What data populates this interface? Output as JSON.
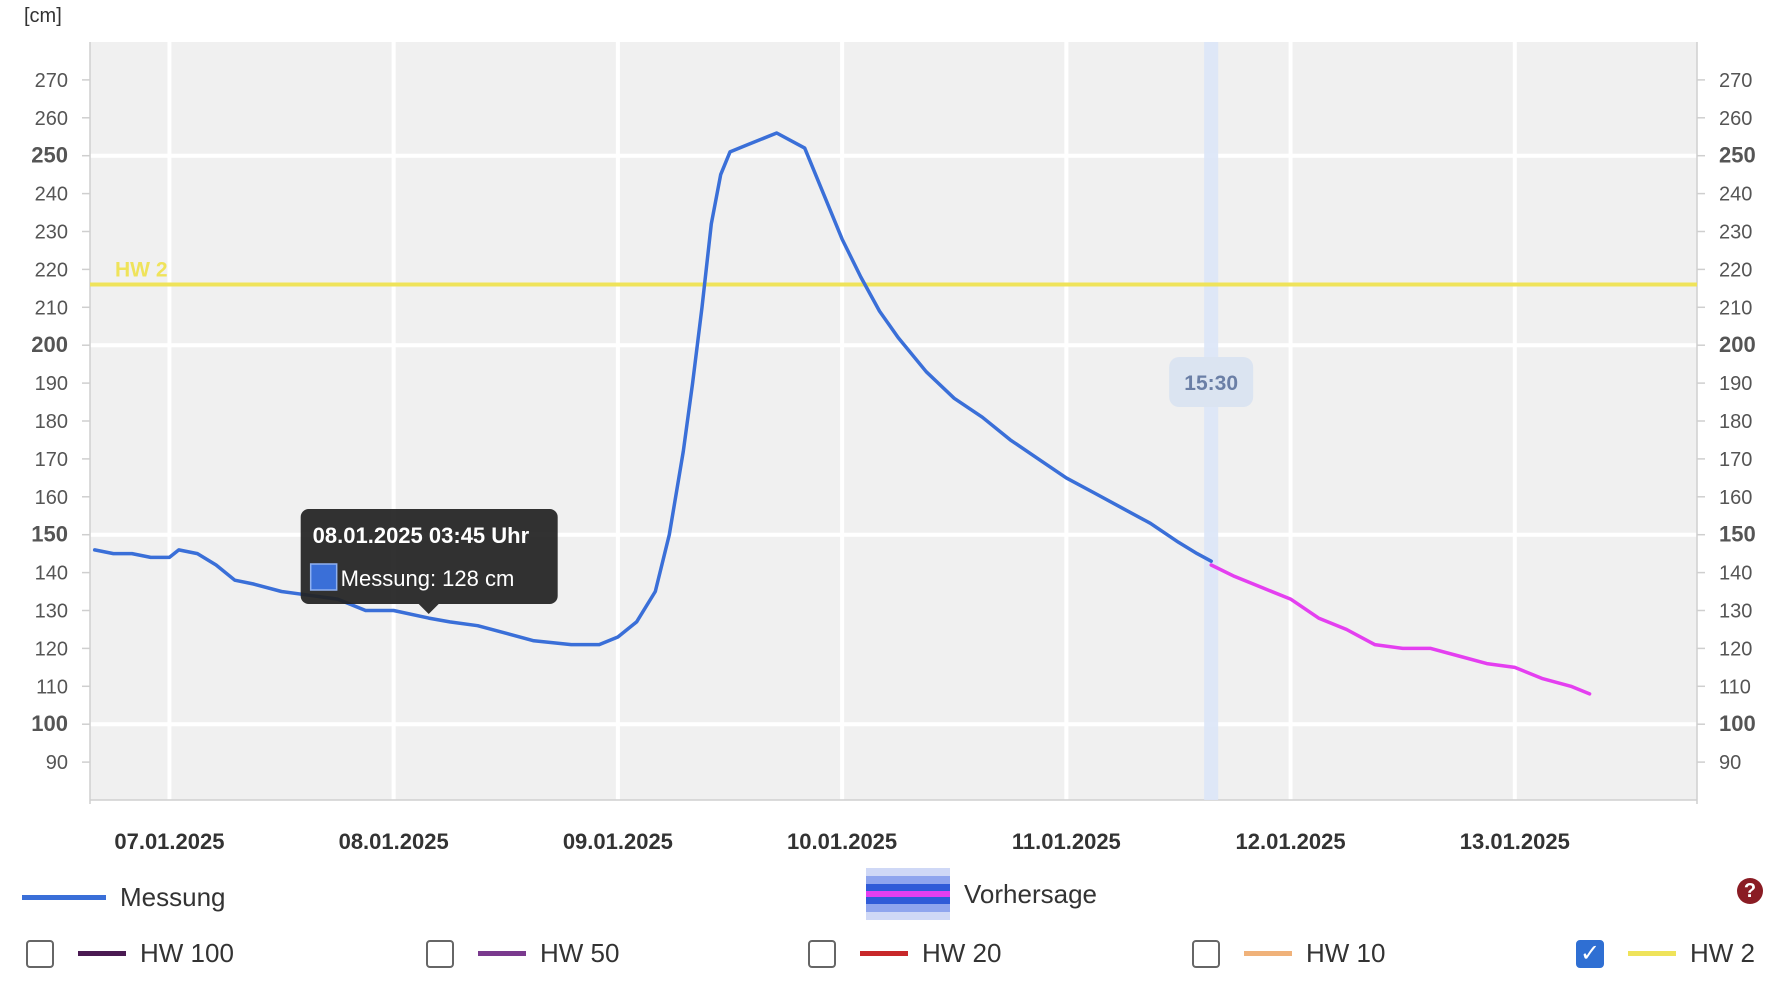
{
  "chart_data": {
    "type": "line",
    "unit_label": "[cm]",
    "ylim": [
      80,
      280
    ],
    "yticks": [
      90,
      100,
      110,
      120,
      130,
      140,
      150,
      160,
      170,
      180,
      190,
      200,
      210,
      220,
      230,
      240,
      250,
      260,
      270
    ],
    "ymajor": [
      100,
      150,
      200,
      250
    ],
    "xlim_days": [
      "06.01.2025 15:30",
      "13.01.2025 19:30"
    ],
    "xticks": [
      "07.01.2025",
      "08.01.2025",
      "09.01.2025",
      "10.01.2025",
      "11.01.2025",
      "12.01.2025",
      "13.01.2025"
    ],
    "series": [
      {
        "name": "Messung",
        "color": "#3a6fd8",
        "points": [
          [
            "06.01.2025 16:00",
            146
          ],
          [
            "06.01.2025 18:00",
            145
          ],
          [
            "06.01.2025 20:00",
            145
          ],
          [
            "06.01.2025 22:00",
            144
          ],
          [
            "07.01.2025 00:00",
            144
          ],
          [
            "07.01.2025 01:00",
            146
          ],
          [
            "07.01.2025 03:00",
            145
          ],
          [
            "07.01.2025 05:00",
            142
          ],
          [
            "07.01.2025 07:00",
            138
          ],
          [
            "07.01.2025 09:00",
            137
          ],
          [
            "07.01.2025 12:00",
            135
          ],
          [
            "07.01.2025 15:00",
            134
          ],
          [
            "07.01.2025 18:00",
            133
          ],
          [
            "07.01.2025 21:00",
            130
          ],
          [
            "08.01.2025 00:00",
            130
          ],
          [
            "08.01.2025 03:45",
            128
          ],
          [
            "08.01.2025 06:00",
            127
          ],
          [
            "08.01.2025 09:00",
            126
          ],
          [
            "08.01.2025 12:00",
            124
          ],
          [
            "08.01.2025 15:00",
            122
          ],
          [
            "08.01.2025 19:00",
            121
          ],
          [
            "08.01.2025 22:00",
            121
          ],
          [
            "09.01.2025 00:00",
            123
          ],
          [
            "09.01.2025 02:00",
            127
          ],
          [
            "09.01.2025 04:00",
            135
          ],
          [
            "09.01.2025 05:30",
            150
          ],
          [
            "09.01.2025 07:00",
            172
          ],
          [
            "09.01.2025 08:00",
            190
          ],
          [
            "09.01.2025 09:00",
            210
          ],
          [
            "09.01.2025 10:00",
            232
          ],
          [
            "09.01.2025 11:00",
            245
          ],
          [
            "09.01.2025 12:00",
            251
          ],
          [
            "09.01.2025 14:00",
            253
          ],
          [
            "09.01.2025 17:00",
            256
          ],
          [
            "09.01.2025 20:00",
            252
          ],
          [
            "09.01.2025 22:00",
            240
          ],
          [
            "10.01.2025 00:00",
            228
          ],
          [
            "10.01.2025 02:00",
            218
          ],
          [
            "10.01.2025 04:00",
            209
          ],
          [
            "10.01.2025 06:00",
            202
          ],
          [
            "10.01.2025 09:00",
            193
          ],
          [
            "10.01.2025 12:00",
            186
          ],
          [
            "10.01.2025 15:00",
            181
          ],
          [
            "10.01.2025 18:00",
            175
          ],
          [
            "10.01.2025 21:00",
            170
          ],
          [
            "11.01.2025 00:00",
            165
          ],
          [
            "11.01.2025 03:00",
            161
          ],
          [
            "11.01.2025 06:00",
            157
          ],
          [
            "11.01.2025 09:00",
            153
          ],
          [
            "11.01.2025 12:00",
            148
          ],
          [
            "11.01.2025 14:00",
            145
          ],
          [
            "11.01.2025 15:30",
            143
          ]
        ]
      },
      {
        "name": "Vorhersage",
        "color": "#e43ff0",
        "points": [
          [
            "11.01.2025 15:30",
            142
          ],
          [
            "11.01.2025 18:00",
            139
          ],
          [
            "11.01.2025 21:00",
            136
          ],
          [
            "12.01.2025 00:00",
            133
          ],
          [
            "12.01.2025 03:00",
            128
          ],
          [
            "12.01.2025 06:00",
            125
          ],
          [
            "12.01.2025 09:00",
            121
          ],
          [
            "12.01.2025 12:00",
            120
          ],
          [
            "12.01.2025 15:00",
            120
          ],
          [
            "12.01.2025 18:00",
            118
          ],
          [
            "12.01.2025 21:00",
            116
          ],
          [
            "13.01.2025 00:00",
            115
          ],
          [
            "13.01.2025 03:00",
            112
          ],
          [
            "13.01.2025 06:00",
            110
          ],
          [
            "13.01.2025 08:00",
            108
          ]
        ]
      }
    ],
    "threshold": {
      "label": "HW 2",
      "value": 216,
      "color": "#efe35a"
    },
    "now_marker": {
      "label": "15:30",
      "at": "11.01.2025 15:30"
    },
    "tooltip": {
      "title": "08.01.2025 03:45 Uhr",
      "text": "Messung: 128 cm",
      "at": "08.01.2025 03:45",
      "value": 128
    },
    "grid": true
  },
  "legend": {
    "messung": {
      "label": "Messung",
      "color": "#3a6fd8"
    },
    "vorhersage": {
      "label": "Vorhersage",
      "color": "#e43ff0"
    }
  },
  "filters": [
    {
      "label": "HW 100",
      "color": "#4a1a52",
      "checked": false
    },
    {
      "label": "HW 50",
      "color": "#7a3a8e",
      "checked": false
    },
    {
      "label": "HW 20",
      "color": "#c8282a",
      "checked": false
    },
    {
      "label": "HW 10",
      "color": "#f0b27a",
      "checked": false
    },
    {
      "label": "HW 2",
      "color": "#efe35a",
      "checked": true
    }
  ],
  "help_icon": "question-circle-icon",
  "help_glyph": "?"
}
